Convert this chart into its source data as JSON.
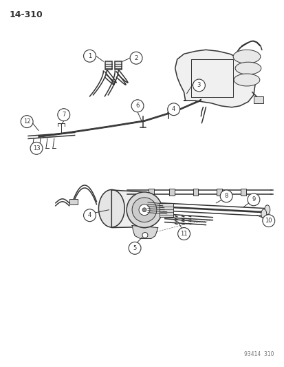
{
  "page_number": "14-310",
  "part_number_code": "93414  310",
  "background_color": "#ffffff",
  "line_color": "#333333",
  "figsize": [
    4.14,
    5.33
  ],
  "dpi": 100
}
